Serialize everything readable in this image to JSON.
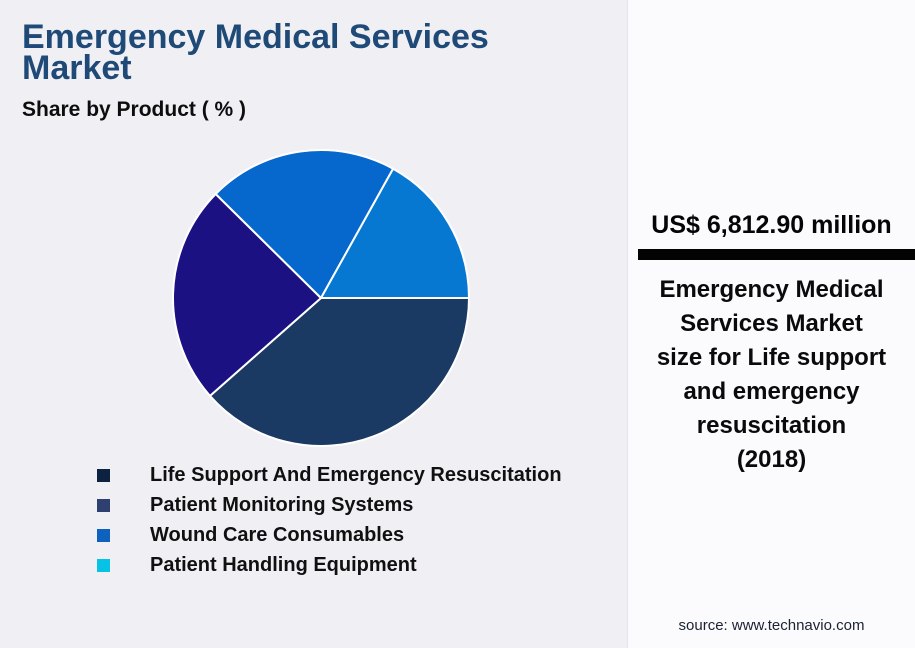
{
  "header": {
    "title": "Emergency Medical Services\nMarket",
    "subtitle": "Share by Product ( % )"
  },
  "side_panel": {
    "headline_value": "US$ 6,812.90 million",
    "description": "Emergency Medical\nServices Market\nsize for Life support\nand emergency\nresuscitation\n(2018)",
    "source": "source: www.technavio.com"
  },
  "colors": {
    "background": "#F0F0F4",
    "panel_background": "#FBFBFD",
    "title_accent": "#1F4A78",
    "underline_bar": "#030303",
    "slice_separator": "#FFFFFF"
  },
  "chart_data": {
    "type": "pie",
    "title": "Emergency Medical Services Market",
    "subtitle": "Share by Product ( % )",
    "unit": "%",
    "start_angle_deg": 0,
    "direction": "clockwise",
    "legend_position": "bottom-left",
    "categories": [
      "Life Support And Emergency Resuscitation",
      "Patient Monitoring Systems",
      "Wound Care Consumables",
      "Patient Handling Equipment"
    ],
    "series": [
      {
        "id": "life-support",
        "label": "Life Support And Emergency Resuscitation",
        "value": 38.5,
        "color": "#1B3A63",
        "legend_color": "#0D2240"
      },
      {
        "id": "patient-monitoring",
        "label": "Patient Monitoring Systems",
        "value": 23.9,
        "color": "#1B1182",
        "legend_color": "#2E4070"
      },
      {
        "id": "wound-care",
        "label": "Wound Care Consumables",
        "value": 20.7,
        "color": "#0667CC",
        "legend_color": "#0E62BE"
      },
      {
        "id": "patient-handling",
        "label": "Patient Handling Equipment",
        "value": 16.9,
        "color": "#0778D2",
        "legend_color": "#06C3E6"
      }
    ]
  }
}
